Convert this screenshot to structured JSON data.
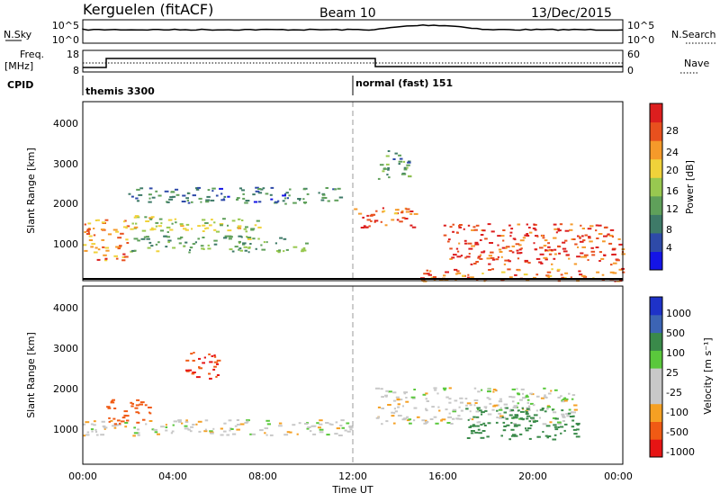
{
  "header": {
    "station": "Kerguelen (fitACF)",
    "beam": "Beam 10",
    "date": "13/Dec/2015"
  },
  "nsky_panel": {
    "left_label": "N.Sky",
    "right_label": "N.Search",
    "left_ticks": [
      "10^5",
      "10^0"
    ],
    "right_ticks": [
      "10^5",
      "10^0"
    ]
  },
  "freq_panel": {
    "left_label_1": "Freq.",
    "left_label_2": "[MHz]",
    "right_label": "Nave",
    "left_ticks": [
      "18",
      "8"
    ],
    "right_ticks": [
      "60",
      "0"
    ]
  },
  "cpid": {
    "label": "CPID",
    "modes": [
      "themis 3300",
      "normal (fast) 151"
    ]
  },
  "colors": {
    "power_scale": [
      "#1414e6",
      "#2e4aa8",
      "#3e7a68",
      "#5fa05a",
      "#98c850",
      "#f0d23a",
      "#f59a2a",
      "#e8501e",
      "#dc1e1e"
    ],
    "velocity_scale": [
      "#e61414",
      "#f05a14",
      "#f5a023",
      "#c8c8c8",
      "#c8c8c8",
      "#5ac83c",
      "#3a8a4a",
      "#3c64b4",
      "#1e32c8"
    ],
    "marker_line": "#999999"
  },
  "chart_data": [
    {
      "type": "heatmap",
      "title": "Power",
      "ylabel": "Slant Range [km]",
      "xlabel": "",
      "xlim": [
        "00:00",
        "24:00"
      ],
      "ylim": [
        180,
        4600
      ],
      "y_ticks": [
        "1000",
        "2000",
        "3000",
        "4000"
      ],
      "colorbar": {
        "label": "Power [dB]",
        "ticks": [
          "4",
          "8",
          "12",
          "16",
          "20",
          "24",
          "28"
        ],
        "range": [
          0,
          30
        ]
      },
      "echo_regions": [
        {
          "time": "00:00-02:00",
          "range_km": [
            700,
            1700
          ],
          "power_db": 22
        },
        {
          "time": "02:00-08:00",
          "range_km": [
            1400,
            1800
          ],
          "power_db": 16
        },
        {
          "time": "02:00-10:00",
          "range_km": [
            900,
            1300
          ],
          "power_db": 12
        },
        {
          "time": "02:00-11:30",
          "range_km": [
            2100,
            2500
          ],
          "power_db": 8
        },
        {
          "time": "12:00-15:00",
          "range_km": [
            1500,
            2000
          ],
          "power_db": 24
        },
        {
          "time": "13:00-14:30",
          "range_km": [
            2700,
            3400
          ],
          "power_db": 10
        },
        {
          "time": "16:00-24:00",
          "range_km": [
            600,
            1600
          ],
          "power_db": 26
        },
        {
          "time": "15:00-24:00",
          "range_km": [
            180,
            500
          ],
          "power_db": 24
        }
      ]
    },
    {
      "type": "heatmap",
      "title": "Velocity",
      "ylabel": "Slant Range [km]",
      "xlabel": "Time UT",
      "x_ticks": [
        "00:00",
        "04:00",
        "08:00",
        "12:00",
        "16:00",
        "20:00",
        "00:00"
      ],
      "y_ticks": [
        "1000",
        "2000",
        "3000",
        "4000"
      ],
      "colorbar": {
        "label": "Velocity [m s⁻¹]",
        "ticks": [
          "1000",
          "500",
          "100",
          "25",
          "-25",
          "-100",
          "-500",
          "-1000"
        ]
      },
      "echo_regions": [
        {
          "time": "00:00-12:00",
          "range_km": [
            900,
            1300
          ],
          "velocity": 0
        },
        {
          "time": "01:00-03:00",
          "range_km": [
            1200,
            1800
          ],
          "velocity": -300
        },
        {
          "time": "04:30-06:00",
          "range_km": [
            2300,
            3000
          ],
          "velocity": -500
        },
        {
          "time": "13:00-22:00",
          "range_km": [
            1200,
            2100
          ],
          "velocity": 0
        },
        {
          "time": "17:00-22:00",
          "range_km": [
            800,
            1600
          ],
          "velocity": 200
        }
      ]
    }
  ]
}
